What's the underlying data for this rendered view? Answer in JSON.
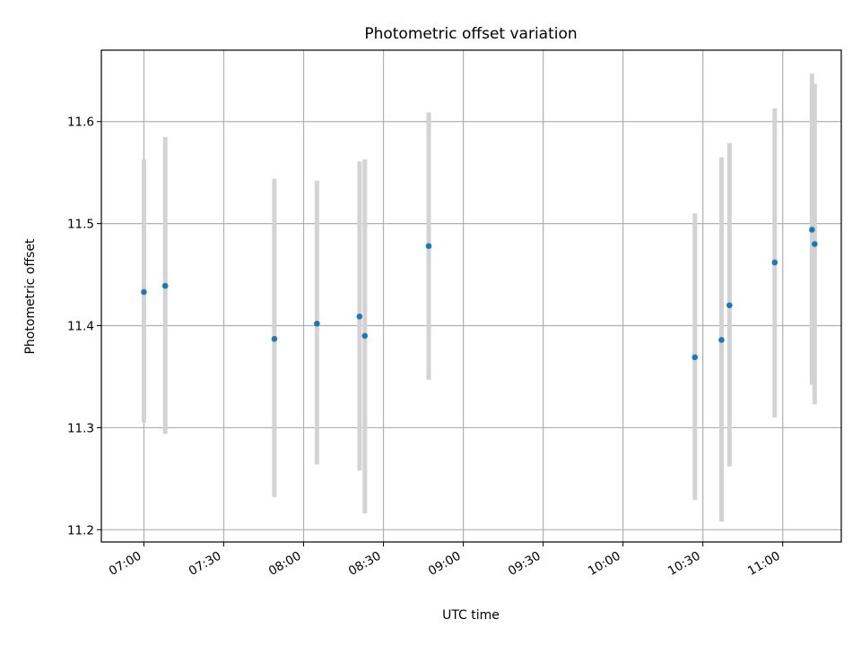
{
  "chart_data": {
    "type": "scatter",
    "title": "Photometric offset variation",
    "xlabel": "UTC time",
    "ylabel": "Photometric offset",
    "xlim": [
      "06:44",
      "11:22"
    ],
    "ylim": [
      11.188,
      11.67
    ],
    "x_ticks": [
      "07:00",
      "07:30",
      "08:00",
      "08:30",
      "09:00",
      "09:30",
      "10:00",
      "10:30",
      "11:00"
    ],
    "y_ticks": [
      "11.2",
      "11.3",
      "11.4",
      "11.5",
      "11.6"
    ],
    "grid": true,
    "marker_color": "#1f77b4",
    "errorbar_color": "#d3d3d3",
    "series": [
      {
        "points": [
          {
            "x": "07:00",
            "y": 11.433,
            "err_low": 11.305,
            "err_high": 11.563
          },
          {
            "x": "07:08",
            "y": 11.439,
            "err_low": 11.294,
            "err_high": 11.585
          },
          {
            "x": "07:49",
            "y": 11.387,
            "err_low": 11.232,
            "err_high": 11.544
          },
          {
            "x": "08:05",
            "y": 11.402,
            "err_low": 11.264,
            "err_high": 11.542
          },
          {
            "x": "08:21",
            "y": 11.409,
            "err_low": 11.258,
            "err_high": 11.561
          },
          {
            "x": "08:23",
            "y": 11.39,
            "err_low": 11.216,
            "err_high": 11.563
          },
          {
            "x": "08:47",
            "y": 11.478,
            "err_low": 11.347,
            "err_high": 11.609
          },
          {
            "x": "10:27",
            "y": 11.369,
            "err_low": 11.229,
            "err_high": 11.51
          },
          {
            "x": "10:37",
            "y": 11.386,
            "err_low": 11.208,
            "err_high": 11.565
          },
          {
            "x": "10:40",
            "y": 11.42,
            "err_low": 11.262,
            "err_high": 11.579
          },
          {
            "x": "10:57",
            "y": 11.462,
            "err_low": 11.31,
            "err_high": 11.613
          },
          {
            "x": "11:11",
            "y": 11.494,
            "err_low": 11.342,
            "err_high": 11.647
          },
          {
            "x": "11:12",
            "y": 11.48,
            "err_low": 11.323,
            "err_high": 11.637
          }
        ]
      }
    ]
  }
}
